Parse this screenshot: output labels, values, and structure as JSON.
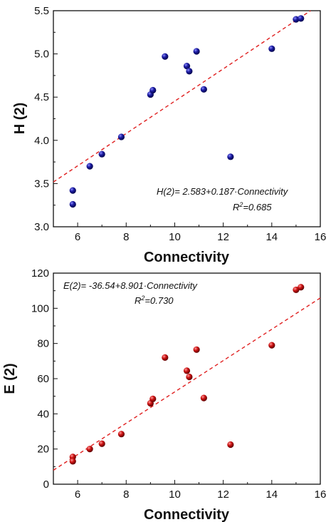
{
  "colors": {
    "top_points": "#1a1aa0",
    "bottom_points": "#cc1111",
    "fit_line": "#e02020"
  },
  "chart_data": [
    {
      "type": "scatter",
      "title": "",
      "xlabel": "Connectivity",
      "ylabel": "H (2)",
      "xlim": [
        5,
        16
      ],
      "ylim": [
        3.0,
        5.5
      ],
      "xticks": [
        "6",
        "8",
        "10",
        "12",
        "14",
        "16"
      ],
      "yticks": [
        "3.0",
        "3.5",
        "4.0",
        "4.5",
        "5.0",
        "5.5"
      ],
      "grid": false,
      "points": {
        "x": [
          5.8,
          5.8,
          6.5,
          7.0,
          7.8,
          9.0,
          9.1,
          9.6,
          10.5,
          10.6,
          10.9,
          11.2,
          12.3,
          14.0,
          15.0,
          15.2
        ],
        "y": [
          3.42,
          3.26,
          3.7,
          3.84,
          4.04,
          4.53,
          4.58,
          4.97,
          4.86,
          4.8,
          5.03,
          4.59,
          3.81,
          5.06,
          5.4,
          5.41
        ]
      },
      "fit": {
        "intercept": 2.583,
        "slope": 0.187
      },
      "annotation": {
        "equation": "H(2)= 2.583+0.187·Connectivity",
        "r2": "=0.685"
      }
    },
    {
      "type": "scatter",
      "title": "",
      "xlabel": "Connectivity",
      "ylabel": "E (2)",
      "xlim": [
        5,
        16
      ],
      "ylim": [
        0,
        120
      ],
      "xticks": [
        "6",
        "8",
        "10",
        "12",
        "14",
        "16"
      ],
      "yticks": [
        "0",
        "20",
        "40",
        "60",
        "80",
        "100",
        "120"
      ],
      "grid": false,
      "points": {
        "x": [
          5.8,
          5.8,
          6.5,
          7.0,
          7.8,
          9.0,
          9.1,
          9.6,
          10.5,
          10.6,
          10.9,
          11.2,
          12.3,
          14.0,
          15.0,
          15.2
        ],
        "y": [
          15.5,
          13.0,
          20.0,
          23.0,
          28.5,
          46.0,
          48.5,
          72.0,
          64.5,
          61.0,
          76.5,
          49.0,
          22.5,
          79.0,
          110.5,
          112.0
        ]
      },
      "fit": {
        "intercept": -36.54,
        "slope": 8.901
      },
      "annotation": {
        "equation": "E(2)= -36.54+8.901·Connectivity",
        "r2": "=0.730"
      }
    }
  ]
}
